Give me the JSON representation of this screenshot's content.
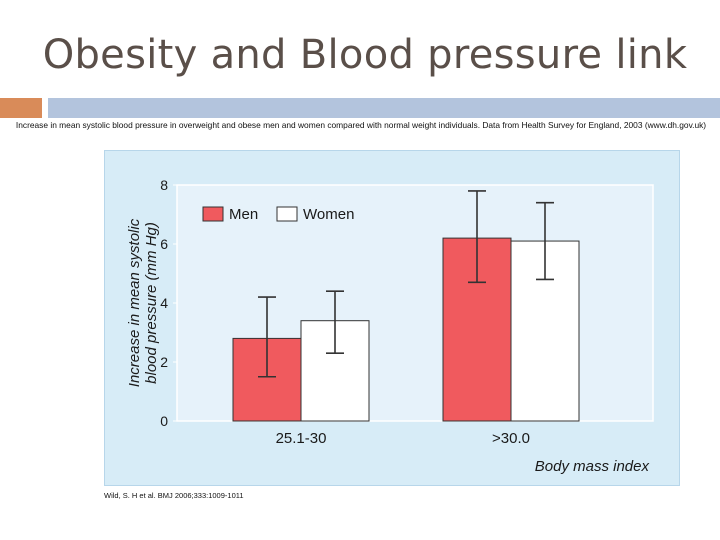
{
  "slide": {
    "title": "Obesity and Blood pressure link",
    "caption": "Increase in mean systolic blood pressure in overweight and obese men and women compared with normal weight individuals. Data from Health Survey for England, 2003 (www.dh.gov.uk)",
    "citation": "Wild, S. H et al. BMJ 2006;333:1009-1011"
  },
  "colors": {
    "accent_orange": "#d98b59",
    "accent_blue": "#b3c4dd",
    "men": "#f05a5e",
    "women": "#ffffff",
    "figure_bg": "#d7ecf7"
  },
  "chart_data": {
    "type": "bar",
    "title": "",
    "xlabel": "Body mass index",
    "ylabel": "Increase in mean systolic blood pressure (mm Hg)",
    "ylim": [
      0,
      8
    ],
    "yticks": [
      "0",
      "2",
      "4",
      "6",
      "8"
    ],
    "categories": [
      "25.1-30",
      ">30.0"
    ],
    "legend_position": "top-left",
    "series": [
      {
        "name": "Men",
        "color": "#f05a5e",
        "values": [
          2.8,
          6.2
        ],
        "error_low": [
          1.5,
          4.7
        ],
        "error_high": [
          4.2,
          7.8
        ]
      },
      {
        "name": "Women",
        "color": "#ffffff",
        "values": [
          3.4,
          6.1
        ],
        "error_low": [
          2.3,
          4.8
        ],
        "error_high": [
          4.4,
          7.4
        ]
      }
    ]
  }
}
